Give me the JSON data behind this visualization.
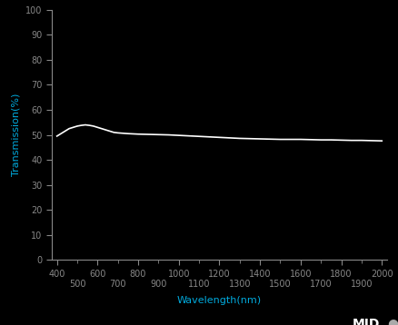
{
  "background_color": "#000000",
  "plot_bg_color": "#000000",
  "line_color": "#ffffff",
  "tick_color": "#888888",
  "label_color": "#00aadd",
  "xlabel": "Wavelength(nm)",
  "ylabel": "Transmission(%)",
  "xlim": [
    375,
    2025
  ],
  "ylim": [
    0,
    100
  ],
  "xticks_major": [
    400,
    600,
    800,
    1000,
    1200,
    1400,
    1600,
    1800,
    2000
  ],
  "xticks_minor": [
    500,
    700,
    900,
    1100,
    1300,
    1500,
    1700,
    1900
  ],
  "yticks": [
    0,
    10,
    20,
    30,
    40,
    50,
    60,
    70,
    80,
    90,
    100
  ],
  "x_data": [
    400,
    420,
    440,
    460,
    480,
    500,
    520,
    540,
    560,
    580,
    600,
    620,
    640,
    660,
    680,
    700,
    750,
    800,
    850,
    900,
    950,
    1000,
    1050,
    1100,
    1150,
    1200,
    1250,
    1300,
    1350,
    1400,
    1450,
    1500,
    1550,
    1600,
    1650,
    1700,
    1750,
    1800,
    1850,
    1900,
    1950,
    2000
  ],
  "y_data": [
    49.5,
    50.5,
    51.5,
    52.5,
    53.0,
    53.5,
    53.8,
    54.0,
    53.8,
    53.5,
    53.0,
    52.5,
    52.0,
    51.5,
    51.0,
    50.8,
    50.5,
    50.3,
    50.2,
    50.1,
    50.0,
    49.8,
    49.6,
    49.4,
    49.2,
    49.0,
    48.8,
    48.6,
    48.5,
    48.4,
    48.3,
    48.2,
    48.2,
    48.2,
    48.1,
    48.0,
    48.0,
    47.9,
    47.8,
    47.8,
    47.7,
    47.6
  ],
  "line_width": 1.2,
  "xlabel_fontsize": 8,
  "ylabel_fontsize": 8,
  "tick_fontsize": 7,
  "midopt_color": "#ffffff",
  "midopt_dot_color": "#aaaaaa",
  "midopt_fontsize": 10
}
